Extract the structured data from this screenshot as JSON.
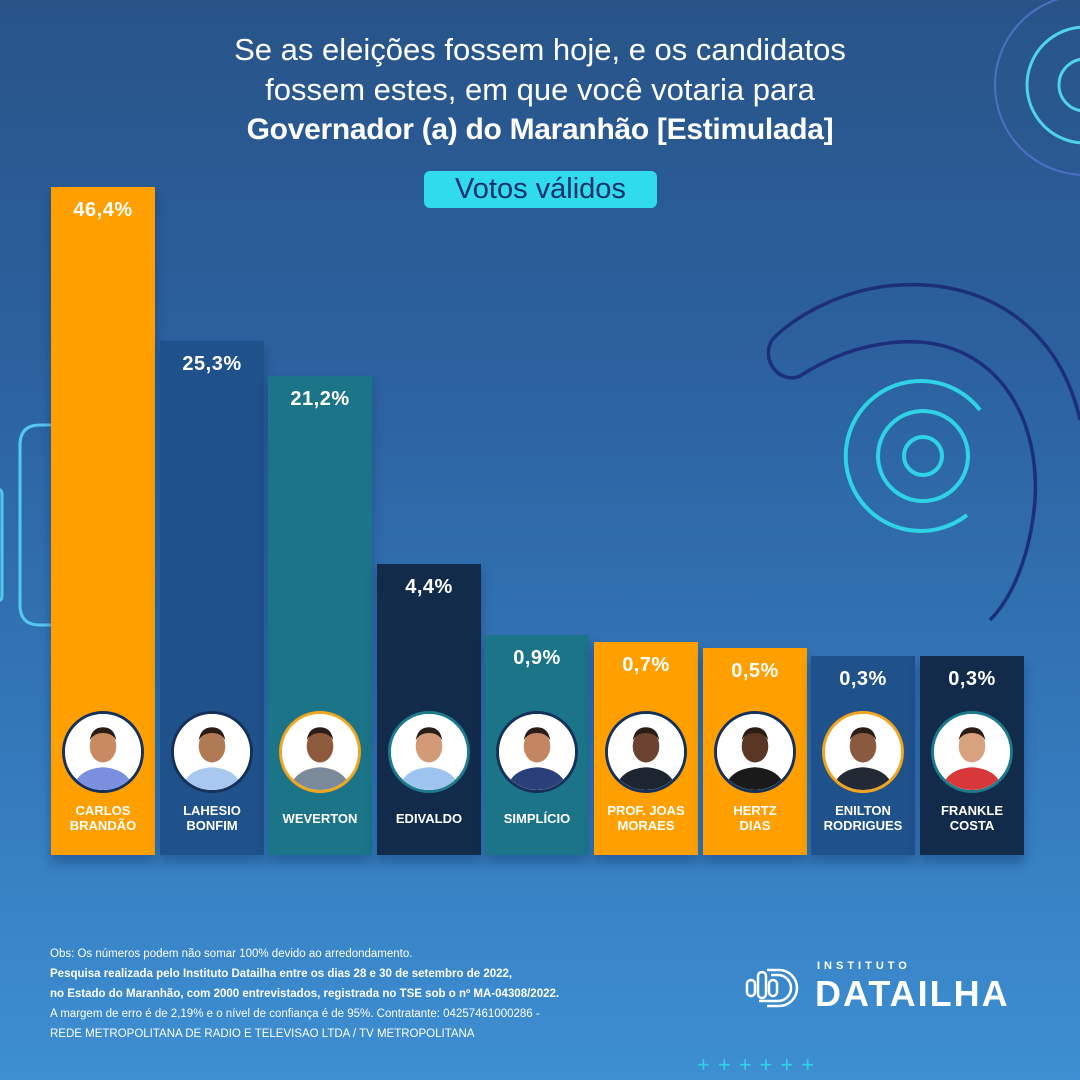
{
  "title": {
    "line1": "Se as eleições fossem hoje, e os candidatos",
    "line2": "fossem estes, em que você votaria para",
    "line3": "Governador (a) do Maranhão [Estimulada]"
  },
  "badge": "Votos válidos",
  "colors": {
    "orange": "#ffa000",
    "blue": "#1f518a",
    "teal": "#1b7487",
    "navy": "#132b4b",
    "accent_cyan": "#2fdbec"
  },
  "chart_data": {
    "type": "bar",
    "title": "Se as eleições fossem hoje, e os candidatos fossem estes, em que você votaria para Governador (a) do Maranhão [Estimulada]",
    "subtitle": "Votos válidos",
    "xlabel": "",
    "ylabel": "",
    "unit": "%",
    "grid": false,
    "legend": "none",
    "categories": [
      "CARLOS BRANDÃO",
      "LAHESIO BONFIM",
      "WEVERTON",
      "EDIVALDO",
      "SIMPLÍCIO",
      "PROF. JOAS MORAES",
      "HERTZ DIAS",
      "ENILTON RODRIGUES",
      "FRANKLE COSTA"
    ],
    "values": [
      46.4,
      25.3,
      21.2,
      4.4,
      0.9,
      0.7,
      0.5,
      0.3,
      0.3
    ],
    "labels": [
      "46,4%",
      "25,3%",
      "21,2%",
      "4,4%",
      "0,9%",
      "0,7%",
      "0,5%",
      "0,3%",
      "0,3%"
    ],
    "bars": [
      {
        "name_lines": [
          "CARLOS",
          "BRANDÃO"
        ],
        "color": "#ffa000",
        "ring": "navy"
      },
      {
        "name_lines": [
          "LAHESIO",
          "BONFIM"
        ],
        "color": "#1f518a",
        "ring": "navy"
      },
      {
        "name_lines": [
          "WEVERTON"
        ],
        "color": "#1b7487",
        "ring": "gold"
      },
      {
        "name_lines": [
          "EDIVALDO"
        ],
        "color": "#132b4b",
        "ring": "teal"
      },
      {
        "name_lines": [
          "SIMPLÍCIO"
        ],
        "color": "#1b7487",
        "ring": "navy"
      },
      {
        "name_lines": [
          "PROF. JOAS",
          "MORAES"
        ],
        "color": "#ffa000",
        "ring": "navy"
      },
      {
        "name_lines": [
          "HERTZ",
          "DIAS"
        ],
        "color": "#ffa000",
        "ring": "navy"
      },
      {
        "name_lines": [
          "ENILTON",
          "RODRIGUES"
        ],
        "color": "#1f518a",
        "ring": "gold"
      },
      {
        "name_lines": [
          "FRANKLE",
          "COSTA"
        ],
        "color": "#132b4b",
        "ring": "teal"
      }
    ]
  },
  "notes": {
    "obs": "Obs: Os números podem não somar 100% devido ao arredondamento.",
    "line2": "Pesquisa realizada pelo Instituto Datailha entre os dias 28 e 30 de setembro de 2022,",
    "line3": "no Estado do Maranhão, com 2000 entrevistados, registrada no TSE sob o nº MA-04308/2022.",
    "line4": "A margem de erro é de 2,19% e o nível de confiança é de 95%. Contratante: 04257461000286 -",
    "line5": "REDE METROPOLITANA DE RADIO E TELEVISAO LTDA / TV METROPOLITANA"
  },
  "logo": {
    "small": "INSTITUTO",
    "big": "DATAILHA"
  },
  "decor": {
    "plus_signs": "++++++"
  }
}
